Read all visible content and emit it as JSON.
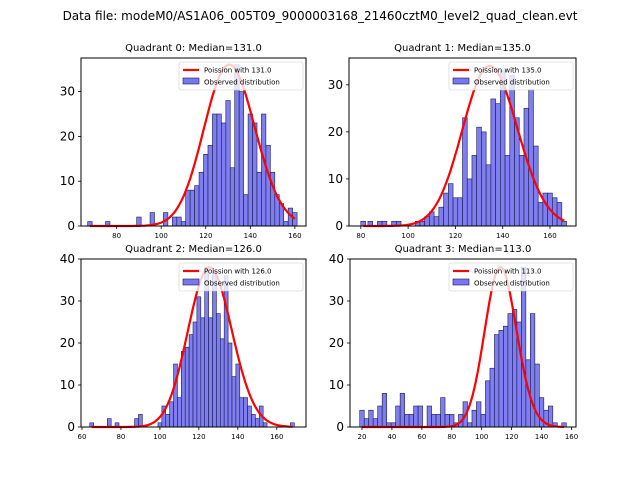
{
  "suptitle": "Data file: modeM0/AS1A06_005T09_9000003168_21460cztM0_level2_quad_clean.evt",
  "colors": {
    "bar_fill": "#7777ee",
    "bar_edge": "#1a1a55",
    "curve": "#ff0000"
  },
  "chart_data": [
    {
      "type": "bar",
      "title": "Quadrant 0: Median=131.0",
      "xlim": [
        64,
        165
      ],
      "ylim": [
        0,
        37.5
      ],
      "xticks": [
        80,
        100,
        120,
        140,
        160
      ],
      "yticks": [
        0,
        10,
        20,
        30
      ],
      "bin_width": 2,
      "legend": {
        "placement": "top-right",
        "entries": [
          "Poission with 131.0",
          "Observed distribution"
        ]
      },
      "bars": [
        [
          68,
          1
        ],
        [
          76,
          1
        ],
        [
          90,
          2
        ],
        [
          96,
          3
        ],
        [
          102,
          3
        ],
        [
          106,
          2
        ],
        [
          108,
          2
        ],
        [
          110,
          1
        ],
        [
          112,
          8
        ],
        [
          114,
          8
        ],
        [
          116,
          9
        ],
        [
          118,
          12
        ],
        [
          120,
          16
        ],
        [
          122,
          18
        ],
        [
          124,
          25
        ],
        [
          126,
          25
        ],
        [
          128,
          23
        ],
        [
          130,
          28
        ],
        [
          132,
          13
        ],
        [
          134,
          36
        ],
        [
          136,
          30
        ],
        [
          138,
          7
        ],
        [
          140,
          25
        ],
        [
          142,
          23
        ],
        [
          144,
          12
        ],
        [
          146,
          25
        ],
        [
          148,
          18
        ],
        [
          150,
          12
        ],
        [
          152,
          7
        ],
        [
          154,
          5
        ],
        [
          156,
          1
        ],
        [
          158,
          4
        ],
        [
          160,
          3
        ]
      ],
      "curve_mean": 131,
      "curve_peak": 36
    },
    {
      "type": "bar",
      "title": "Quadrant 1: Median=135.0",
      "xlim": [
        75,
        171
      ],
      "ylim": [
        0,
        35.7
      ],
      "xticks": [
        80,
        100,
        120,
        140,
        160
      ],
      "yticks": [
        0,
        10,
        20,
        30
      ],
      "bin_width": 2,
      "legend": {
        "placement": "top-right",
        "entries": [
          "Poission with 135.0",
          "Observed distribution"
        ]
      },
      "bars": [
        [
          81,
          1
        ],
        [
          84,
          1
        ],
        [
          88,
          1
        ],
        [
          90,
          1
        ],
        [
          94,
          1
        ],
        [
          96,
          1
        ],
        [
          104,
          1
        ],
        [
          106,
          1
        ],
        [
          108,
          2
        ],
        [
          110,
          3
        ],
        [
          112,
          2
        ],
        [
          114,
          4
        ],
        [
          116,
          7
        ],
        [
          118,
          9
        ],
        [
          120,
          6
        ],
        [
          122,
          6
        ],
        [
          124,
          23
        ],
        [
          126,
          10
        ],
        [
          128,
          15
        ],
        [
          130,
          21
        ],
        [
          132,
          20
        ],
        [
          134,
          13
        ],
        [
          136,
          27
        ],
        [
          138,
          26
        ],
        [
          140,
          33
        ],
        [
          142,
          15
        ],
        [
          144,
          32
        ],
        [
          146,
          23
        ],
        [
          148,
          15
        ],
        [
          150,
          25
        ],
        [
          152,
          29
        ],
        [
          154,
          17
        ],
        [
          156,
          5
        ],
        [
          158,
          7
        ],
        [
          160,
          7
        ],
        [
          162,
          6
        ],
        [
          164,
          5
        ],
        [
          166,
          1
        ]
      ],
      "curve_mean": 135,
      "curve_peak": 34
    },
    {
      "type": "bar",
      "title": "Quadrant 2: Median=126.0",
      "xlim": [
        59.5,
        175
      ],
      "ylim": [
        0,
        40
      ],
      "xticks": [
        60,
        80,
        100,
        120,
        140,
        160
      ],
      "yticks": [
        0,
        10,
        20,
        30,
        40
      ],
      "bin_width": 2,
      "legend": {
        "placement": "top-right",
        "entries": [
          "Poission with 126.0",
          "Observed distribution"
        ]
      },
      "bars": [
        [
          65,
          1
        ],
        [
          74,
          2
        ],
        [
          78,
          1
        ],
        [
          88,
          2
        ],
        [
          90,
          3
        ],
        [
          100,
          1
        ],
        [
          102,
          5
        ],
        [
          104,
          3
        ],
        [
          106,
          6
        ],
        [
          108,
          15
        ],
        [
          110,
          7
        ],
        [
          112,
          18
        ],
        [
          114,
          19
        ],
        [
          116,
          22
        ],
        [
          118,
          25
        ],
        [
          120,
          31
        ],
        [
          122,
          26
        ],
        [
          124,
          38
        ],
        [
          126,
          26
        ],
        [
          128,
          37
        ],
        [
          130,
          27
        ],
        [
          132,
          21
        ],
        [
          134,
          36
        ],
        [
          136,
          20
        ],
        [
          138,
          12
        ],
        [
          140,
          15
        ],
        [
          142,
          7
        ],
        [
          144,
          7
        ],
        [
          146,
          5
        ],
        [
          148,
          3
        ],
        [
          150,
          2
        ],
        [
          152,
          5
        ],
        [
          154,
          1
        ],
        [
          168,
          1
        ]
      ],
      "curve_mean": 126,
      "curve_peak": 38
    },
    {
      "type": "bar",
      "title": "Quadrant 3: Median=113.0",
      "xlim": [
        12,
        163
      ],
      "ylim": [
        0,
        40
      ],
      "xticks": [
        20,
        40,
        60,
        80,
        100,
        120,
        140,
        160
      ],
      "yticks": [
        0,
        10,
        20,
        30,
        40
      ],
      "bin_width": 3,
      "legend": {
        "placement": "top-right",
        "entries": [
          "Poission with 113.0",
          "Observed distribution"
        ]
      },
      "bars": [
        [
          20,
          4
        ],
        [
          23,
          2
        ],
        [
          26,
          4
        ],
        [
          29,
          2
        ],
        [
          32,
          5
        ],
        [
          35,
          8
        ],
        [
          38,
          1
        ],
        [
          41,
          1
        ],
        [
          44,
          5
        ],
        [
          47,
          8
        ],
        [
          50,
          3
        ],
        [
          53,
          3
        ],
        [
          56,
          5
        ],
        [
          59,
          5
        ],
        [
          62,
          0
        ],
        [
          65,
          5
        ],
        [
          68,
          3
        ],
        [
          71,
          3
        ],
        [
          74,
          7
        ],
        [
          77,
          3
        ],
        [
          80,
          3
        ],
        [
          83,
          1
        ],
        [
          86,
          3
        ],
        [
          89,
          6
        ],
        [
          92,
          1
        ],
        [
          95,
          4
        ],
        [
          98,
          6
        ],
        [
          101,
          3
        ],
        [
          104,
          11
        ],
        [
          107,
          14
        ],
        [
          110,
          22
        ],
        [
          113,
          23
        ],
        [
          116,
          24
        ],
        [
          119,
          27
        ],
        [
          122,
          28
        ],
        [
          125,
          25
        ],
        [
          128,
          38
        ],
        [
          131,
          16
        ],
        [
          134,
          27
        ],
        [
          137,
          15
        ],
        [
          140,
          7
        ],
        [
          143,
          4
        ],
        [
          146,
          5
        ],
        [
          149,
          1
        ],
        [
          155,
          1
        ]
      ],
      "curve_mean": 113,
      "curve_peak": 38
    }
  ]
}
